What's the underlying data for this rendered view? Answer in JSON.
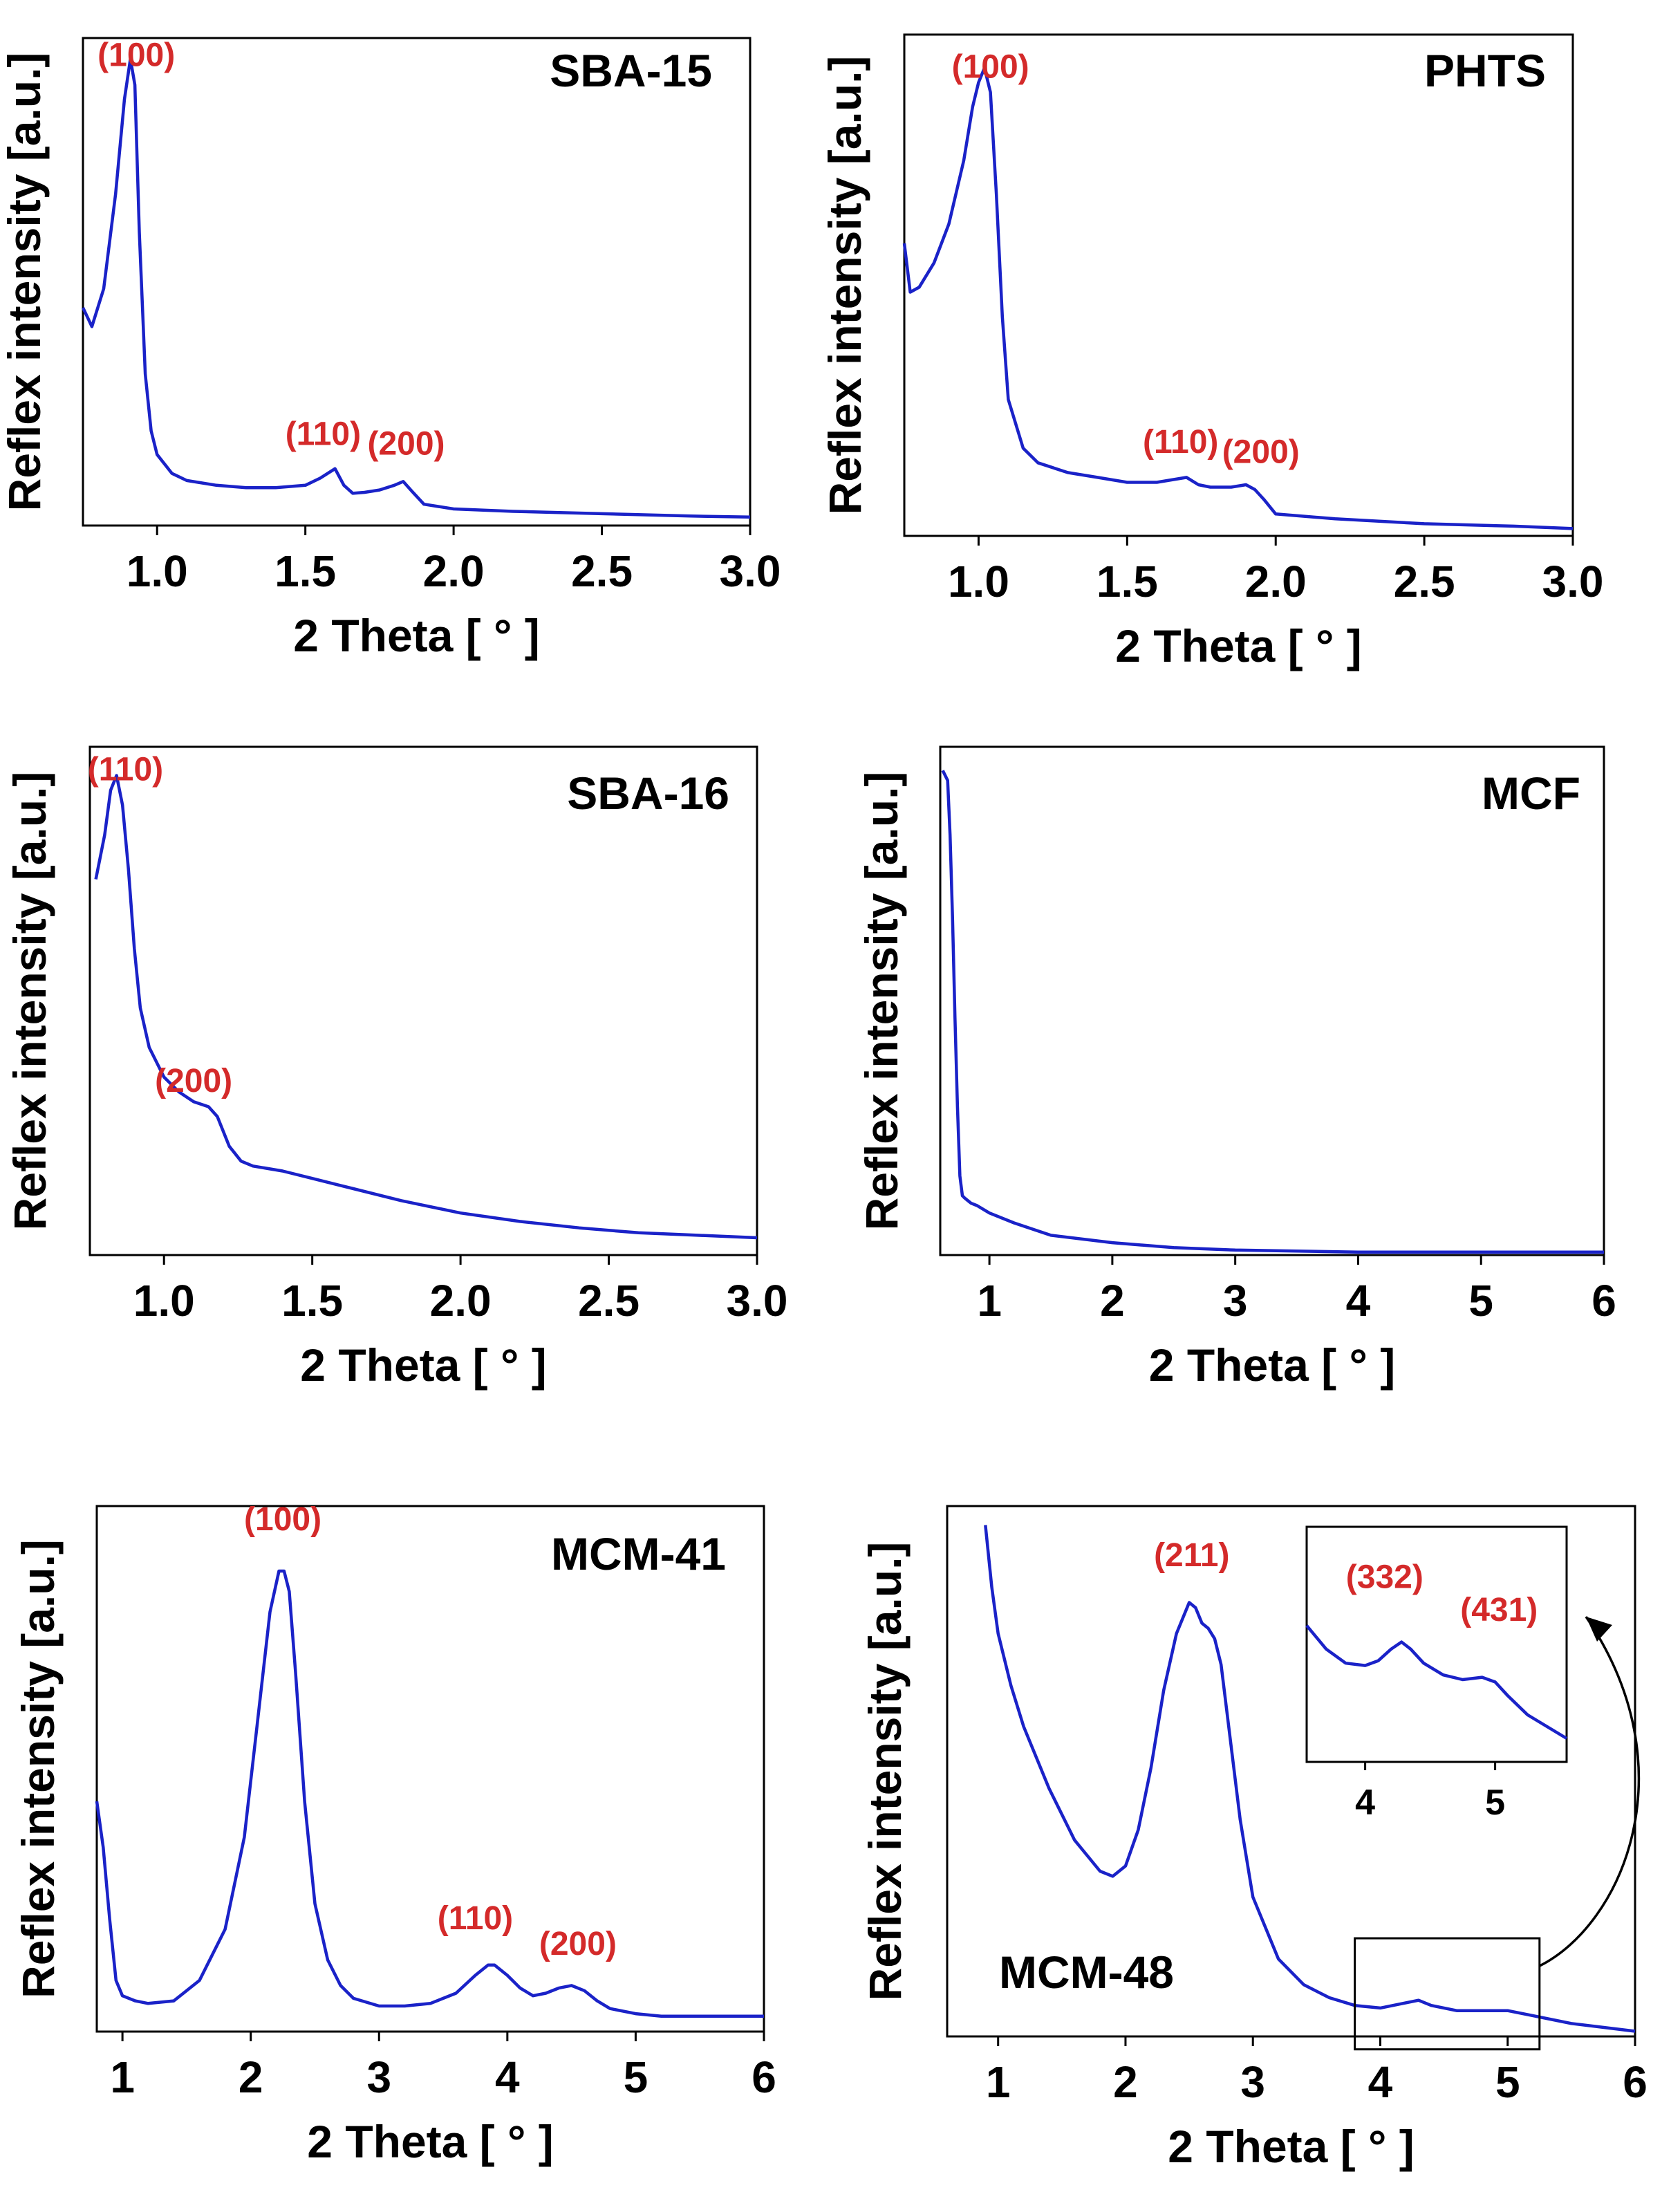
{
  "theme": {
    "curve": "#1a22c8",
    "peak_label": "#d42a2a",
    "axis": "#000000"
  },
  "chart_data": [
    {
      "type": "line",
      "name": "SBA-15",
      "xlabel": "2 Theta [ ° ]",
      "ylabel": "Reflex intensity [a.u.]",
      "xlim": [
        0.75,
        3.0
      ],
      "ylim": [
        0,
        1
      ],
      "xticks": [
        "1.0",
        "1.5",
        "2.0",
        "2.5",
        "3.0"
      ],
      "x": [
        0.75,
        0.78,
        0.82,
        0.86,
        0.89,
        0.91,
        0.925,
        0.94,
        0.96,
        0.98,
        1.0,
        1.05,
        1.1,
        1.2,
        1.3,
        1.4,
        1.5,
        1.55,
        1.6,
        1.63,
        1.66,
        1.7,
        1.75,
        1.8,
        1.83,
        1.86,
        1.9,
        2.0,
        2.2,
        2.5,
        2.8,
        3.0
      ],
      "y": [
        0.46,
        0.42,
        0.5,
        0.7,
        0.9,
        0.985,
        0.93,
        0.62,
        0.32,
        0.2,
        0.15,
        0.11,
        0.095,
        0.085,
        0.08,
        0.08,
        0.085,
        0.1,
        0.12,
        0.085,
        0.068,
        0.07,
        0.075,
        0.085,
        0.093,
        0.072,
        0.045,
        0.035,
        0.03,
        0.025,
        0.02,
        0.018
      ],
      "peak_labels": [
        {
          "text": "(100)",
          "x": 0.93,
          "y": 0.97
        },
        {
          "text": "(110)",
          "x": 1.56,
          "y": 0.17
        },
        {
          "text": "(200)",
          "x": 1.84,
          "y": 0.15
        }
      ]
    },
    {
      "type": "line",
      "name": "PHTS",
      "xlabel": "2 Theta [ ° ]",
      "ylabel": "Reflex intensity [a.u.]",
      "xlim": [
        0.75,
        3.0
      ],
      "ylim": [
        0,
        1
      ],
      "xticks": [
        "1.0",
        "1.5",
        "2.0",
        "2.5",
        "3.0"
      ],
      "x": [
        0.75,
        0.77,
        0.8,
        0.85,
        0.9,
        0.95,
        0.98,
        1.0,
        1.02,
        1.04,
        1.06,
        1.08,
        1.1,
        1.15,
        1.2,
        1.3,
        1.4,
        1.5,
        1.6,
        1.7,
        1.74,
        1.78,
        1.85,
        1.9,
        1.93,
        1.96,
        2.0,
        2.2,
        2.5,
        2.8,
        3.0
      ],
      "y": [
        0.6,
        0.5,
        0.51,
        0.56,
        0.64,
        0.77,
        0.88,
        0.93,
        0.96,
        0.91,
        0.7,
        0.45,
        0.28,
        0.18,
        0.15,
        0.13,
        0.12,
        0.11,
        0.11,
        0.12,
        0.105,
        0.1,
        0.1,
        0.105,
        0.095,
        0.075,
        0.045,
        0.035,
        0.025,
        0.02,
        0.015
      ],
      "peak_labels": [
        {
          "text": "(100)",
          "x": 1.04,
          "y": 0.94
        },
        {
          "text": "(110)",
          "x": 1.68,
          "y": 0.17
        },
        {
          "text": "(200)",
          "x": 1.95,
          "y": 0.15
        }
      ]
    },
    {
      "type": "line",
      "name": "SBA-16",
      "xlabel": "2 Theta [ ° ]",
      "ylabel": "Reflex intensity [a.u.]",
      "xlim": [
        0.75,
        3.0
      ],
      "ylim": [
        0,
        1
      ],
      "xticks": [
        "1.0",
        "1.5",
        "2.0",
        "2.5",
        "3.0"
      ],
      "x": [
        0.77,
        0.8,
        0.82,
        0.84,
        0.86,
        0.88,
        0.9,
        0.92,
        0.95,
        1.0,
        1.05,
        1.1,
        1.15,
        1.18,
        1.22,
        1.26,
        1.3,
        1.4,
        1.5,
        1.6,
        1.8,
        2.0,
        2.2,
        2.4,
        2.6,
        2.8,
        3.0
      ],
      "y": [
        0.76,
        0.85,
        0.94,
        0.97,
        0.91,
        0.78,
        0.62,
        0.5,
        0.42,
        0.36,
        0.33,
        0.31,
        0.3,
        0.28,
        0.22,
        0.19,
        0.18,
        0.17,
        0.155,
        0.14,
        0.11,
        0.085,
        0.068,
        0.055,
        0.045,
        0.04,
        0.035
      ],
      "peak_labels": [
        {
          "text": "(110)",
          "x": 0.87,
          "y": 0.96
        },
        {
          "text": "(200)",
          "x": 1.1,
          "y": 0.33
        }
      ]
    },
    {
      "type": "line",
      "name": "MCF",
      "xlabel": "2 Theta [ ° ]",
      "ylabel": "Reflex intensity [a.u.]",
      "xlim": [
        0.6,
        6.0
      ],
      "ylim": [
        0,
        1
      ],
      "xticks": [
        "1",
        "2",
        "3",
        "4",
        "5",
        "6"
      ],
      "x": [
        0.62,
        0.66,
        0.68,
        0.7,
        0.72,
        0.74,
        0.76,
        0.78,
        0.8,
        0.85,
        0.9,
        1.0,
        1.2,
        1.5,
        2.0,
        2.5,
        3.0,
        4.0,
        5.0,
        6.0
      ],
      "y": [
        0.98,
        0.96,
        0.85,
        0.68,
        0.48,
        0.3,
        0.16,
        0.12,
        0.115,
        0.105,
        0.1,
        0.085,
        0.065,
        0.04,
        0.025,
        0.015,
        0.01,
        0.006,
        0.006,
        0.006
      ],
      "peak_labels": []
    },
    {
      "type": "line",
      "name": "MCM-41",
      "xlabel": "2 Theta [ ° ]",
      "ylabel": "Reflex intensity [a.u.]",
      "xlim": [
        0.8,
        6.0
      ],
      "ylim": [
        0,
        1
      ],
      "xticks": [
        "1",
        "2",
        "3",
        "4",
        "5",
        "6"
      ],
      "x": [
        0.8,
        0.85,
        0.9,
        0.95,
        1.0,
        1.1,
        1.2,
        1.4,
        1.6,
        1.8,
        1.95,
        2.05,
        2.15,
        2.22,
        2.26,
        2.3,
        2.35,
        2.42,
        2.5,
        2.6,
        2.7,
        2.8,
        3.0,
        3.2,
        3.4,
        3.6,
        3.75,
        3.85,
        3.9,
        4.0,
        4.1,
        4.2,
        4.3,
        4.4,
        4.5,
        4.6,
        4.7,
        4.8,
        5.0,
        5.2,
        5.5,
        6.0
      ],
      "y": [
        0.45,
        0.36,
        0.22,
        0.1,
        0.07,
        0.06,
        0.055,
        0.06,
        0.1,
        0.2,
        0.38,
        0.6,
        0.82,
        0.9,
        0.9,
        0.86,
        0.7,
        0.45,
        0.25,
        0.14,
        0.09,
        0.065,
        0.05,
        0.05,
        0.055,
        0.075,
        0.11,
        0.13,
        0.13,
        0.11,
        0.085,
        0.07,
        0.075,
        0.085,
        0.09,
        0.08,
        0.06,
        0.045,
        0.035,
        0.03,
        0.03,
        0.03
      ],
      "peak_labels": [
        {
          "text": "(100)",
          "x": 2.25,
          "y": 0.98
        },
        {
          "text": "(110)",
          "x": 3.75,
          "y": 0.2
        },
        {
          "text": "(200)",
          "x": 4.55,
          "y": 0.15
        }
      ]
    },
    {
      "type": "line",
      "name": "MCM-48",
      "xlabel": "2 Theta [ ° ]",
      "ylabel": "Reflex intensity [a.u.]",
      "xlim": [
        0.6,
        6.0
      ],
      "ylim": [
        0,
        1
      ],
      "xticks": [
        "1",
        "2",
        "3",
        "4",
        "5",
        "6"
      ],
      "x": [
        0.9,
        0.95,
        1.0,
        1.1,
        1.2,
        1.4,
        1.6,
        1.8,
        1.9,
        2.0,
        2.1,
        2.2,
        2.3,
        2.4,
        2.5,
        2.55,
        2.6,
        2.65,
        2.7,
        2.75,
        2.8,
        2.9,
        3.0,
        3.2,
        3.4,
        3.6,
        3.8,
        4.0,
        4.2,
        4.3,
        4.4,
        4.6,
        4.8,
        5.0,
        5.2,
        5.5,
        6.0
      ],
      "y": [
        0.99,
        0.87,
        0.78,
        0.68,
        0.6,
        0.48,
        0.38,
        0.32,
        0.31,
        0.33,
        0.4,
        0.52,
        0.67,
        0.78,
        0.84,
        0.83,
        0.8,
        0.79,
        0.77,
        0.72,
        0.62,
        0.42,
        0.27,
        0.15,
        0.1,
        0.075,
        0.06,
        0.055,
        0.065,
        0.07,
        0.06,
        0.05,
        0.05,
        0.05,
        0.04,
        0.025,
        0.01
      ],
      "peak_labels": [
        {
          "text": "(211)",
          "x": 2.52,
          "y": 0.91
        }
      ],
      "inset": {
        "xlim": [
          3.55,
          5.55
        ],
        "ylim": [
          0,
          1
        ],
        "xticks": [
          "4",
          "5"
        ],
        "zoom_range": [
          3.8,
          5.25
        ],
        "x": [
          3.55,
          3.7,
          3.85,
          4.0,
          4.1,
          4.2,
          4.28,
          4.35,
          4.45,
          4.6,
          4.75,
          4.9,
          5.0,
          5.1,
          5.25,
          5.4,
          5.55
        ],
        "y": [
          0.58,
          0.48,
          0.42,
          0.41,
          0.43,
          0.48,
          0.51,
          0.48,
          0.42,
          0.37,
          0.35,
          0.36,
          0.34,
          0.28,
          0.2,
          0.15,
          0.1
        ],
        "peak_labels": [
          {
            "text": "(332)",
            "x": 4.15,
            "y": 0.74
          },
          {
            "text": "(431)",
            "x": 5.03,
            "y": 0.6
          }
        ]
      }
    }
  ]
}
